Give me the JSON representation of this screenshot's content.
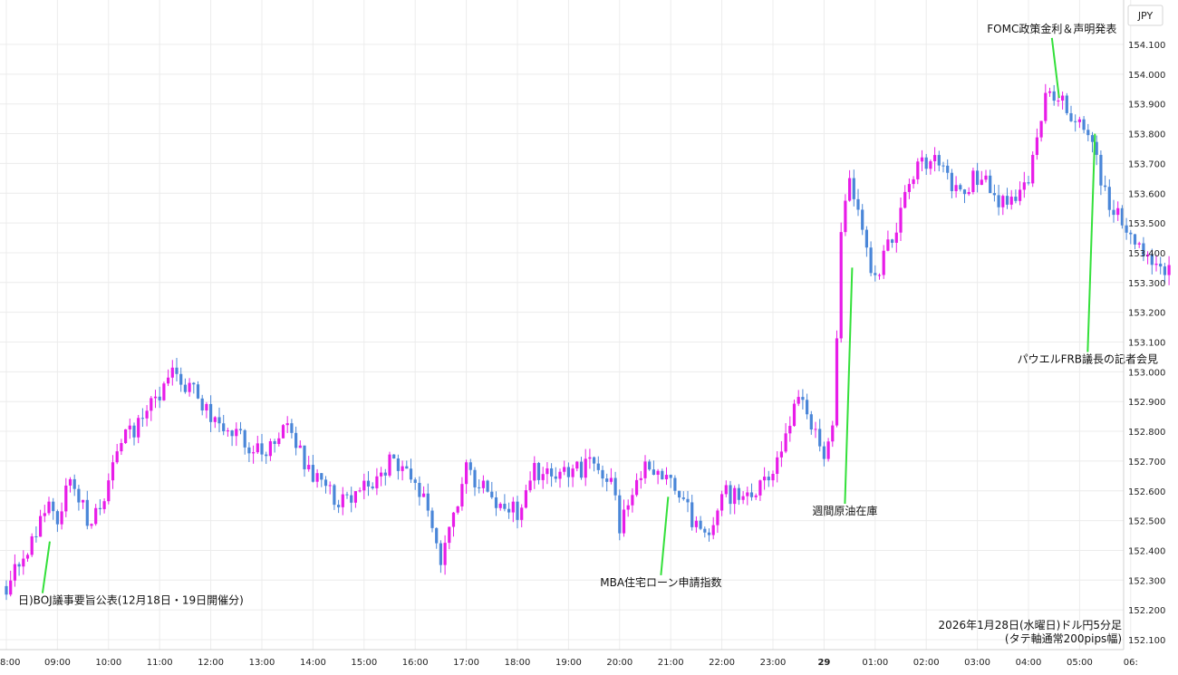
{
  "chart_data": {
    "type": "candlestick",
    "currency": "JPY",
    "caption_line1": "2026年1月28日(水曜日)ドル円5分足",
    "caption_line2": "(タテ軸通常200pips幅)",
    "ylim": [
      152.08,
      154.17
    ],
    "y_ticks": [
      "152.100",
      "152.200",
      "152.300",
      "152.400",
      "152.500",
      "152.600",
      "152.700",
      "152.800",
      "152.900",
      "153.000",
      "153.100",
      "153.200",
      "153.300",
      "153.400",
      "153.500",
      "153.600",
      "153.700",
      "153.800",
      "153.900",
      "154.000",
      "154.100"
    ],
    "x_ticks": [
      "8:00",
      "09:00",
      "10:00",
      "11:00",
      "12:00",
      "13:00",
      "14:00",
      "15:00",
      "16:00",
      "17:00",
      "18:00",
      "19:00",
      "20:00",
      "21:00",
      "22:00",
      "23:00",
      "29",
      "01:00",
      "02:00",
      "03:00",
      "04:00",
      "05:00",
      "06:"
    ],
    "up_color": "#e81ce8",
    "down_color": "#4a86d8",
    "annotation_color": "#33e03a",
    "anchors": [
      {
        "h": 0.0,
        "p": 152.28
      },
      {
        "h": 0.5,
        "p": 152.42
      },
      {
        "h": 0.8,
        "p": 152.57
      },
      {
        "h": 1.0,
        "p": 152.5
      },
      {
        "h": 1.3,
        "p": 152.66
      },
      {
        "h": 1.6,
        "p": 152.48
      },
      {
        "h": 2.0,
        "p": 152.62
      },
      {
        "h": 2.3,
        "p": 152.78
      },
      {
        "h": 2.6,
        "p": 152.82
      },
      {
        "h": 3.0,
        "p": 152.93
      },
      {
        "h": 3.2,
        "p": 153.0
      },
      {
        "h": 3.5,
        "p": 152.96
      },
      {
        "h": 4.0,
        "p": 152.86
      },
      {
        "h": 4.5,
        "p": 152.78
      },
      {
        "h": 5.0,
        "p": 152.72
      },
      {
        "h": 5.5,
        "p": 152.8
      },
      {
        "h": 6.0,
        "p": 152.66
      },
      {
        "h": 6.5,
        "p": 152.55
      },
      {
        "h": 7.0,
        "p": 152.6
      },
      {
        "h": 7.5,
        "p": 152.7
      },
      {
        "h": 8.0,
        "p": 152.62
      },
      {
        "h": 8.2,
        "p": 152.55
      },
      {
        "h": 8.5,
        "p": 152.36
      },
      {
        "h": 8.7,
        "p": 152.48
      },
      {
        "h": 9.0,
        "p": 152.68
      },
      {
        "h": 9.5,
        "p": 152.58
      },
      {
        "h": 10.0,
        "p": 152.52
      },
      {
        "h": 10.3,
        "p": 152.68
      },
      {
        "h": 10.6,
        "p": 152.64
      },
      {
        "h": 11.0,
        "p": 152.67
      },
      {
        "h": 11.5,
        "p": 152.68
      },
      {
        "h": 11.9,
        "p": 152.62
      },
      {
        "h": 12.0,
        "p": 152.48
      },
      {
        "h": 12.3,
        "p": 152.62
      },
      {
        "h": 12.6,
        "p": 152.7
      },
      {
        "h": 13.0,
        "p": 152.62
      },
      {
        "h": 13.5,
        "p": 152.48
      },
      {
        "h": 13.8,
        "p": 152.42
      },
      {
        "h": 14.0,
        "p": 152.6
      },
      {
        "h": 14.5,
        "p": 152.57
      },
      {
        "h": 15.0,
        "p": 152.67
      },
      {
        "h": 15.5,
        "p": 152.9
      },
      {
        "h": 16.0,
        "p": 152.74
      },
      {
        "h": 16.1,
        "p": 152.8
      },
      {
        "h": 16.2,
        "p": 152.82
      },
      {
        "h": 16.3,
        "p": 153.43
      },
      {
        "h": 16.5,
        "p": 153.64
      },
      {
        "h": 16.6,
        "p": 153.58
      },
      {
        "h": 16.8,
        "p": 153.4
      },
      {
        "h": 17.0,
        "p": 153.3
      },
      {
        "h": 17.4,
        "p": 153.48
      },
      {
        "h": 17.8,
        "p": 153.68
      },
      {
        "h": 18.2,
        "p": 153.72
      },
      {
        "h": 18.6,
        "p": 153.6
      },
      {
        "h": 19.0,
        "p": 153.66
      },
      {
        "h": 19.5,
        "p": 153.56
      },
      {
        "h": 20.0,
        "p": 153.64
      },
      {
        "h": 20.3,
        "p": 153.9
      },
      {
        "h": 20.6,
        "p": 153.92
      },
      {
        "h": 20.9,
        "p": 153.84
      },
      {
        "h": 21.2,
        "p": 153.78
      },
      {
        "h": 21.5,
        "p": 153.6
      },
      {
        "h": 22.0,
        "p": 153.44
      },
      {
        "h": 22.5,
        "p": 153.37
      },
      {
        "h": 22.8,
        "p": 153.34
      }
    ],
    "annotations": [
      {
        "text": "日)BOJ議事要旨公表(12月18日・19日開催分)",
        "h": 0.85,
        "p": 152.43,
        "label_p": 152.22
      },
      {
        "text": "MBA住宅ローン申請指数",
        "h": 12.95,
        "p": 152.58,
        "label_p": 152.28
      },
      {
        "text": "週間原油在庫",
        "h": 16.55,
        "p": 153.35,
        "label_p": 152.52
      },
      {
        "text": "FOMC政策金利＆声明発表",
        "h": 20.6,
        "p": 153.92,
        "label_p": 154.14
      },
      {
        "text": "パウエルFRB議長の記者会見",
        "h": 21.3,
        "p": 153.8,
        "label_p": 153.03
      }
    ]
  }
}
